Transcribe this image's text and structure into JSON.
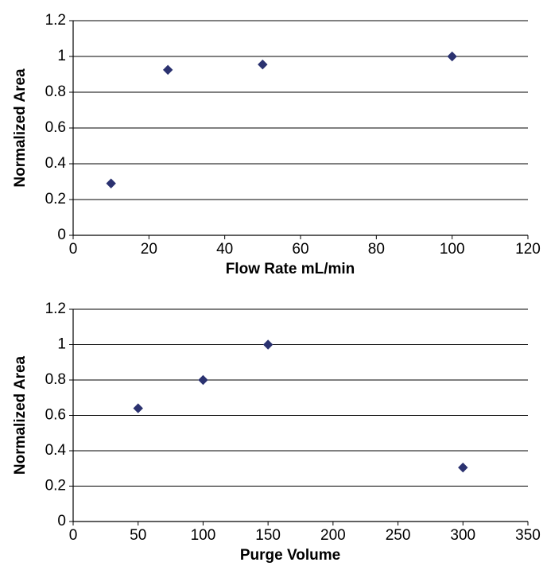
{
  "chart_data": [
    {
      "type": "scatter",
      "x_label": "Flow Rate mL/min",
      "y_label": "Normalized Area",
      "series": [
        {
          "color": "#2b3270",
          "x": [
            10,
            25,
            50,
            100
          ],
          "values": [
            0.29,
            0.925,
            0.955,
            1.0
          ]
        }
      ],
      "xlim": [
        0,
        120
      ],
      "xticks": [
        0,
        20,
        40,
        60,
        80,
        100,
        120
      ],
      "ylim": [
        0,
        1.2
      ],
      "yticks": [
        0,
        0.2,
        0.4,
        0.6,
        0.8,
        1,
        1.2
      ],
      "grid": true
    },
    {
      "type": "scatter",
      "x_label": "Purge Volume",
      "y_label": "Normalized Area",
      "series": [
        {
          "color": "#2b3270",
          "x": [
            50,
            100,
            150,
            300
          ],
          "values": [
            0.64,
            0.8,
            1.0,
            0.305
          ]
        }
      ],
      "xlim": [
        0,
        350
      ],
      "xticks": [
        0,
        50,
        100,
        150,
        200,
        250,
        300,
        350
      ],
      "ylim": [
        0,
        1.2
      ],
      "yticks": [
        0,
        0.2,
        0.4,
        0.6,
        0.8,
        1,
        1.2
      ],
      "grid": true
    }
  ]
}
